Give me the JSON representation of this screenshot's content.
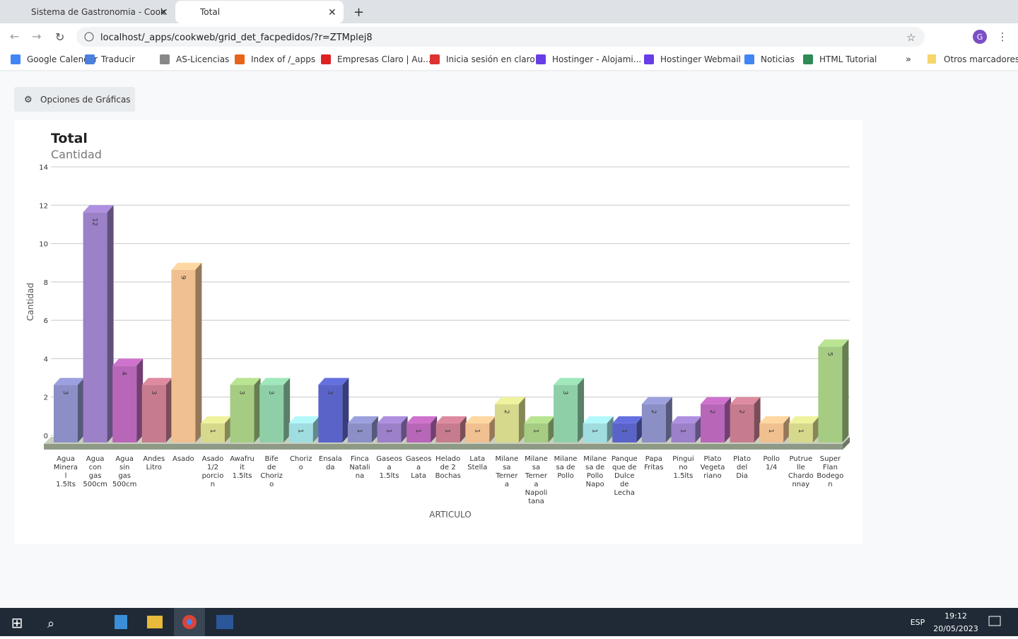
{
  "browser": {
    "tabs": [
      "Sistema de Gastronomia - Cook",
      "Total"
    ],
    "url": "localhost/_apps/cookweb/grid_det_facpedidos/?r=ZTMplej8",
    "bookmarks": [
      "Google Calendar",
      "Traducir",
      "AS-Licencias",
      "Index of /_apps",
      "Empresas Claro | Au...",
      "Inicia sesión en claro",
      "Hostinger - Alojami...",
      "Hostinger Webmail",
      "Noticias",
      "HTML Tutorial"
    ],
    "other_bookmarks": "Otros marcadores",
    "profile": "G"
  },
  "button": "Opciones de Gráficas",
  "taskbar": {
    "lang": "ESP",
    "time": "19:12",
    "date": "20/05/2023"
  },
  "chart_data": {
    "type": "bar3d",
    "title": "Total",
    "subtitle": "Cantidad",
    "x_label": "ARTICULO",
    "y_label": "Cantidad",
    "categories": [
      "Agua Mineral 1.5lts",
      "Agua con gas 500cm",
      "Agua sin gas 500cm",
      "Andes Litro",
      "Asado",
      "Asado 1/2 porcion",
      "Awafruit 1.5lts",
      "Bife de Chorizo",
      "Chorizo",
      "Ensalada",
      "Finca Natalina",
      "Gaseosa 1.5lts",
      "Gaseosa Lata",
      "Helado de 2 Bochas",
      "Lata Stella",
      "Milanesa Ternera",
      "Milanesa Ternera Napolitana",
      "Milanesa de Pollo",
      "Milanesa de Pollo Napo",
      "Panqueque de Dulce de Lecha",
      "Papa Fritas",
      "Pinguino 1.5lts",
      "Plato Vegetariano",
      "Plato del Dia",
      "Pollo 1/4",
      "Putruelle Chardonnay",
      "Super Flan Bodegon"
    ],
    "values": [
      3,
      12,
      4,
      3,
      9,
      1,
      3,
      3,
      1,
      3,
      1,
      1,
      1,
      1,
      1,
      2,
      1,
      3,
      1,
      1,
      2,
      1,
      2,
      2,
      1,
      1,
      5
    ],
    "colors": [
      "#8b8fc6",
      "#9c80c8",
      "#b866b8",
      "#c67c8e",
      "#f0c090",
      "#d6d98c",
      "#a5cc82",
      "#8fcfa8",
      "#a0dde0",
      "#5a64c8"
    ],
    "ylim": [
      0,
      14
    ],
    "yticks": [
      0,
      2,
      4,
      6,
      8,
      10,
      12,
      14
    ],
    "grid": true
  }
}
